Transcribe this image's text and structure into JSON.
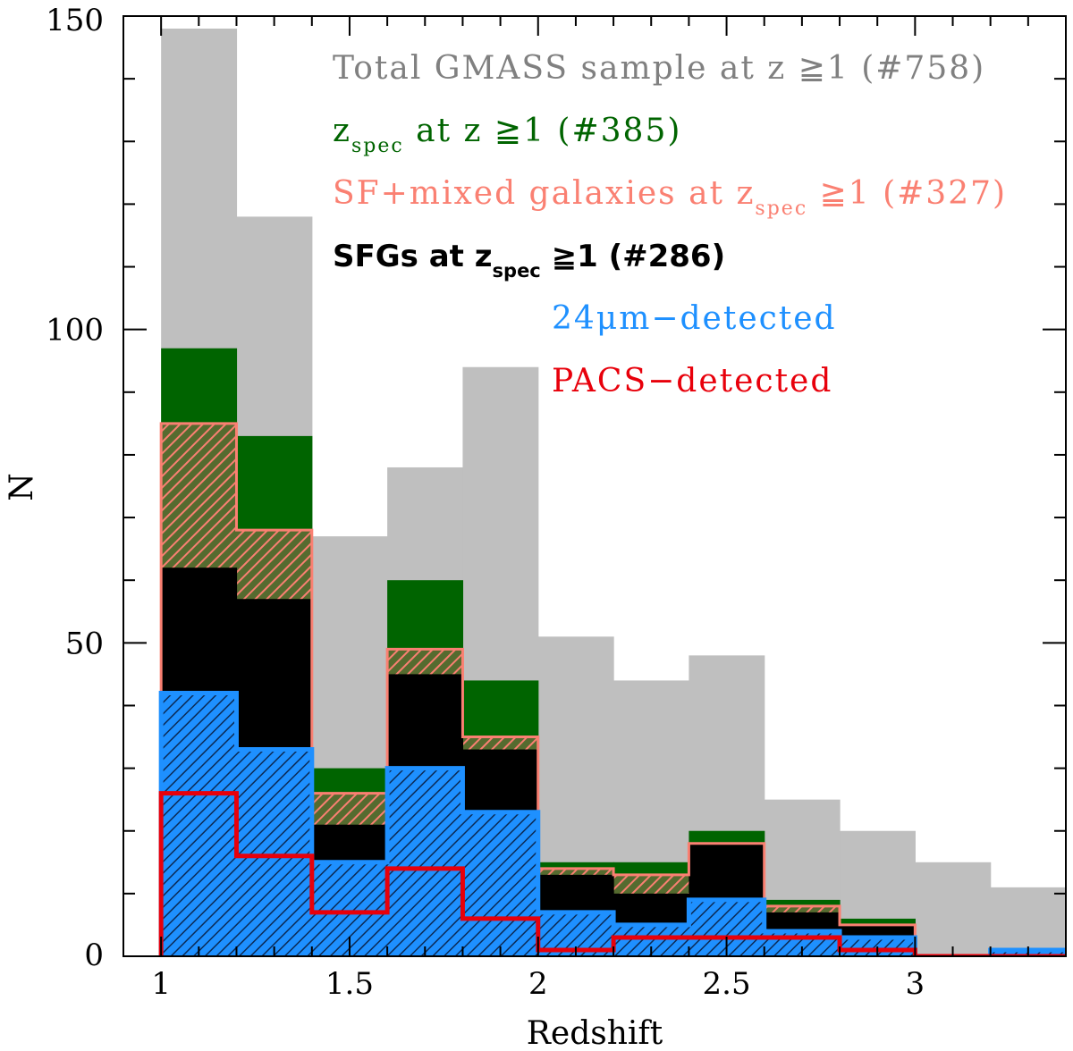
{
  "chart_data": {
    "type": "bar",
    "xlabel": "Redshift",
    "ylabel": "N",
    "xlim": [
      0.9,
      3.4
    ],
    "ylim": [
      0,
      150
    ],
    "x_ticks": [
      "1",
      "1.5",
      "2",
      "2.5",
      "3"
    ],
    "y_ticks": [
      "0",
      "50",
      "100",
      "150"
    ],
    "bin_edges": [
      1.0,
      1.2,
      1.4,
      1.6,
      1.8,
      2.0,
      2.2,
      2.4,
      2.6,
      2.8,
      3.0,
      3.2,
      3.4
    ],
    "series": [
      {
        "key": "total",
        "color": "#bfbfbf",
        "style": "filled",
        "values": [
          148,
          118,
          67,
          78,
          94,
          51,
          44,
          48,
          25,
          20,
          15,
          11
        ]
      },
      {
        "key": "zspec",
        "color": "#006400",
        "style": "filled",
        "values": [
          97,
          83,
          30,
          60,
          44,
          15,
          15,
          20,
          9,
          6,
          0,
          0
        ]
      },
      {
        "key": "sf_mixed",
        "color": "#fa8072",
        "fill": "#556b2f",
        "style": "hatched",
        "values": [
          85,
          68,
          26,
          49,
          35,
          14,
          13,
          18,
          8,
          5,
          0,
          0
        ]
      },
      {
        "key": "sfg",
        "color": "#000000",
        "style": "filled",
        "values": [
          62,
          57,
          21,
          45,
          33,
          13,
          10,
          18,
          7,
          5,
          0,
          0
        ]
      },
      {
        "key": "mips24",
        "color": "#1e90ff",
        "style": "hatched-step",
        "values": [
          42,
          33,
          15,
          30,
          23,
          7,
          5,
          9,
          4,
          3,
          0,
          1
        ]
      },
      {
        "key": "pacs",
        "color": "#e8000b",
        "style": "step",
        "values": [
          26,
          16,
          7,
          14,
          6,
          1,
          3,
          3,
          3,
          1,
          0,
          0
        ]
      }
    ],
    "legend": {
      "placement": "top-right",
      "total": "Total GMASS sample at z ≧1 (#758)",
      "zspec_main": "z",
      "zspec_sub": "spec",
      "zspec_rest": " at z ≧1 (#385)",
      "sf_pre": "SF+mixed galaxies at z",
      "sf_sub": "spec",
      "sf_rest": " ≧1 (#327)",
      "sfg_pre": "SFGs at z",
      "sfg_sub": "spec",
      "sfg_rest": " ≧1 (#286)",
      "mips24": "24μm−detected",
      "pacs": "PACS−detected"
    }
  }
}
